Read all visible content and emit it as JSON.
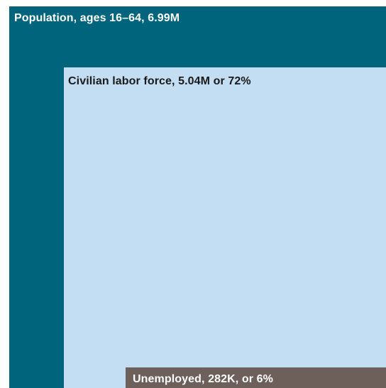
{
  "chart_data": {
    "type": "nested-area",
    "title": "",
    "series": [
      {
        "key": "population",
        "label": "Population, ages 16–64, 6.99M",
        "value": 6.99,
        "unit": "M",
        "color": "#00647c",
        "text_color": "#ffffff"
      },
      {
        "key": "labor",
        "label": "Civilian labor force, 5.04M or 72%",
        "value": 5.04,
        "unit": "M",
        "share_of_parent": 72,
        "color": "#c3ddf2",
        "text_color": "#1a1a1a"
      },
      {
        "key": "unemployed",
        "label": "Unemployed, 282K, or 6%",
        "value": 282,
        "unit": "K",
        "share_of_parent": 6,
        "color": "#6d5f59",
        "text_color": "#ffffff"
      }
    ]
  }
}
